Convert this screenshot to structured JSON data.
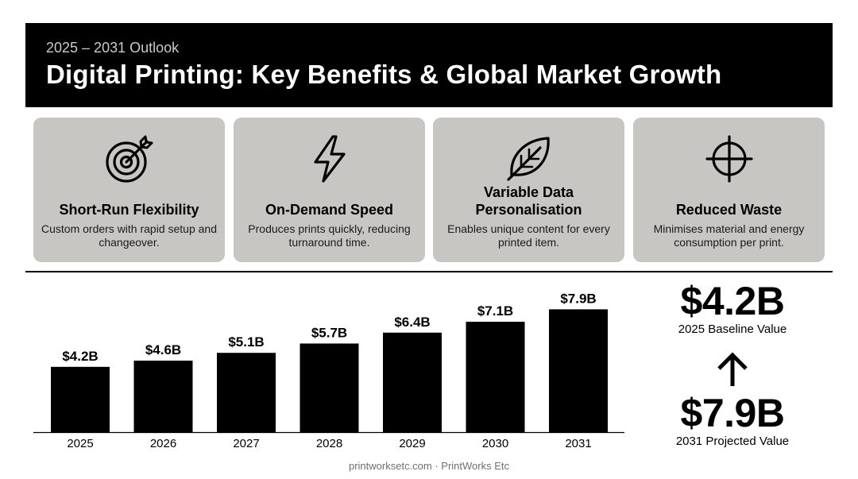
{
  "header": {
    "subtitle": "2025 – 2031 Outlook",
    "title": "Digital Printing: Key Benefits & Global Market Growth"
  },
  "benefits": [
    {
      "icon": "target-icon",
      "title": "Short-Run Flexibility",
      "desc": "Custom orders with rapid setup and changeover."
    },
    {
      "icon": "lightning-bolt-icon",
      "title": "On-Demand Speed",
      "desc": "Produces prints quickly, reducing turnaround time."
    },
    {
      "icon": "leaf-icon",
      "title": "Variable Data Personalisation",
      "desc": "Enables unique content for every printed item."
    },
    {
      "icon": "crosshair-icon",
      "title": "Reduced Waste",
      "desc": "Minimises material and energy consumption per print."
    }
  ],
  "chart_data": {
    "type": "bar",
    "categories": [
      "2025",
      "2026",
      "2027",
      "2028",
      "2029",
      "2030",
      "2031"
    ],
    "values": [
      4.2,
      4.6,
      5.1,
      5.7,
      6.4,
      7.1,
      7.9
    ],
    "labels": [
      "$4.2B",
      "$4.6B",
      "$5.1B",
      "$5.7B",
      "$6.4B",
      "$7.1B",
      "$7.9B"
    ],
    "title": "",
    "xlabel": "",
    "ylabel": "",
    "ylim": [
      0,
      9.3
    ],
    "grid": false,
    "bar_color": "#000000"
  },
  "kpis": {
    "baseline_value": "$4.2B",
    "baseline_label": "2025 Baseline Value",
    "projected_value": "$7.9B",
    "projected_label": "2031 Projected Value",
    "arrow_icon": "arrow-up-icon"
  },
  "footer": {
    "text": "printworksetc.com · PrintWorks Etc"
  }
}
